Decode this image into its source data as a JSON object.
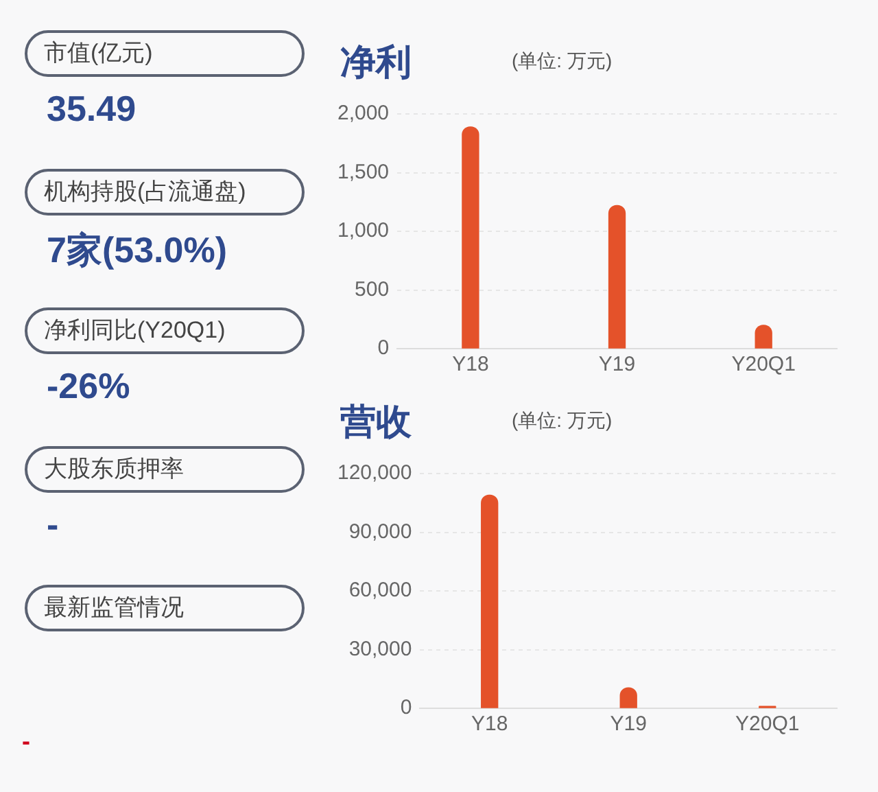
{
  "chart_data": [
    {
      "type": "other",
      "annotations": [
        "市值(亿元)",
        "35.49",
        "机构持股(占流通盘)",
        "7家(53.0%)",
        "净利同比(Y20Q1)",
        "-26%",
        "大股东质押率",
        "-",
        "最新监管情况",
        "-"
      ]
    },
    {
      "type": "bar",
      "title": "净利",
      "subtitle": "(单位: 万元)",
      "categories": [
        "Y18",
        "Y19",
        "Y20Q1"
      ],
      "values": [
        1890,
        1220,
        200
      ],
      "color": "#e4522a",
      "ylim": [
        0,
        2000
      ],
      "yticks": [
        0,
        {
          "value": 500,
          "label": "500"
        },
        {
          "value": 1000,
          "label": "1,000"
        },
        {
          "value": 1500,
          "label": "1,500"
        },
        {
          "value": 2000,
          "label": "2,000"
        }
      ],
      "grid": "y",
      "legend": false
    },
    {
      "type": "bar",
      "title": "营收",
      "subtitle": "(单位: 万元)",
      "categories": [
        "Y18",
        "Y19",
        "Y20Q1"
      ],
      "values": [
        109000,
        10500,
        1000
      ],
      "color": "#e4522a",
      "ylim": [
        0,
        120000
      ],
      "yticks": [
        0,
        {
          "value": 30000,
          "label": "30,000"
        },
        {
          "value": 60000,
          "label": "60,000"
        },
        {
          "value": 90000,
          "label": "90,000"
        },
        {
          "value": 120000,
          "label": "120,000"
        }
      ],
      "grid": "y",
      "legend": false
    }
  ]
}
